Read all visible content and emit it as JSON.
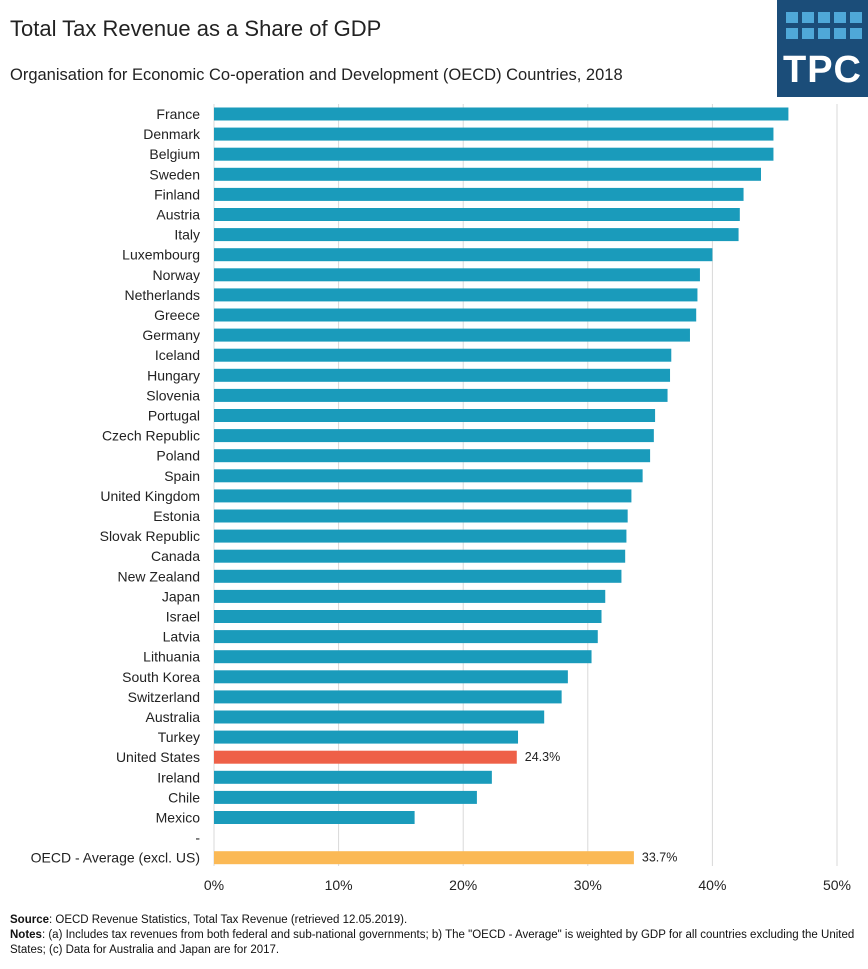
{
  "chart_data": {
    "type": "bar",
    "orientation": "horizontal",
    "title": "Total Tax Revenue as a Share of GDP",
    "subtitle": "Organisation for Economic Co-operation and Development (OECD) Countries, 2018",
    "categories": [
      "France",
      "Denmark",
      "Belgium",
      "Sweden",
      "Finland",
      "Austria",
      "Italy",
      "Luxembourg",
      "Norway",
      "Netherlands",
      "Greece",
      "Germany",
      "Iceland",
      "Hungary",
      "Slovenia",
      "Portugal",
      "Czech Republic",
      "Poland",
      "Spain",
      "United Kingdom",
      "Estonia",
      "Slovak Republic",
      "Canada",
      "New Zealand",
      "Japan",
      "Israel",
      "Latvia",
      "Lithuania",
      "South Korea",
      "Switzerland",
      "Australia",
      "Turkey",
      "United States",
      "Ireland",
      "Chile",
      "Mexico",
      "-",
      "OECD - Average (excl. US)"
    ],
    "values": [
      46.1,
      44.9,
      44.9,
      43.9,
      42.5,
      42.2,
      42.1,
      40.0,
      39.0,
      38.8,
      38.7,
      38.2,
      36.7,
      36.6,
      36.4,
      35.4,
      35.3,
      35.0,
      34.4,
      33.5,
      33.2,
      33.1,
      33.0,
      32.7,
      31.4,
      31.1,
      30.8,
      30.3,
      28.4,
      27.9,
      26.5,
      24.4,
      24.3,
      22.3,
      21.1,
      16.1,
      null,
      33.7
    ],
    "data_labels": {
      "United States": "24.3%",
      "OECD - Average (excl. US)": "33.7%"
    },
    "colors": {
      "default": "#1a9bbb",
      "United States": "#ee6048",
      "OECD - Average (excl. US)": "#fbb955"
    },
    "xlim": [
      0,
      50
    ],
    "xticks": [
      "0%",
      "10%",
      "20%",
      "30%",
      "40%",
      "50%"
    ],
    "grid": true
  },
  "logo": {
    "text": "TPC",
    "background": "#1b4d79",
    "accent": "#4fa8d8"
  },
  "footnotes": {
    "source_label": "Source",
    "source_text": ": OECD Revenue Statistics, Total Tax Revenue  (retrieved 12.05.2019).",
    "notes_label": "Notes",
    "notes_text": ": (a) Includes tax revenues  from both federal and sub-national governments; b) The \"OECD - Average\" is weighted by GDP for all countries excluding the United States; (c) Data for Australia and Japan are for 2017."
  }
}
